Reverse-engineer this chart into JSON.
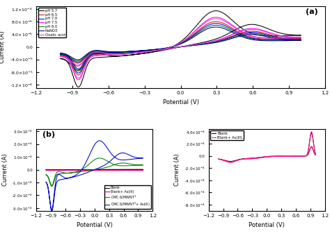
{
  "panel_a": {
    "label": "(a)",
    "xlabel": "Potential (V)",
    "ylabel": "Current (A)",
    "xlim": [
      -1.2,
      1.2
    ],
    "ylim": [
      -0.00013,
      0.00013
    ],
    "yticks": [
      -0.00012,
      -8e-05,
      -4e-05,
      0.0,
      4e-05,
      8e-05,
      0.00012
    ],
    "xticks": [
      -1.2,
      -0.9,
      -0.6,
      -0.3,
      0.0,
      0.3,
      0.6,
      0.9,
      1.2
    ],
    "curves": [
      {
        "label": "pH 5.7",
        "color": "#000000",
        "amp": 1.0
      },
      {
        "label": "pH 6.5",
        "color": "#ff0000",
        "amp": 0.7
      },
      {
        "label": "pH 7.0",
        "color": "#0000ff",
        "amp": 0.65
      },
      {
        "label": "pH 7.5",
        "color": "#ff00ff",
        "amp": 0.82
      },
      {
        "label": "pH 8.0",
        "color": "#008000",
        "amp": 0.6
      },
      {
        "label": "NaNO3",
        "color": "#000080",
        "amp": 0.55
      },
      {
        "label": "Oxalic acid",
        "color": "#cc44cc",
        "amp": 0.78
      }
    ]
  },
  "panel_b": {
    "label": "(b)",
    "xlabel": "Potential (V)",
    "ylabel": "Current (A)",
    "xlim": [
      -1.2,
      1.2
    ],
    "ylim": [
      -0.00032,
      0.00032
    ],
    "yticks": [
      -0.0003,
      -0.0002,
      -0.0001,
      0.0,
      0.0001,
      0.0002,
      0.0003
    ],
    "xticks": [
      -1.2,
      -0.9,
      -0.6,
      -0.3,
      0.0,
      0.3,
      0.6,
      0.9,
      1.2
    ],
    "curves": [
      {
        "label": "Blank",
        "color": "#000000"
      },
      {
        "label": "Blank+ As(III)",
        "color": "#ff1493"
      },
      {
        "label": "CMC-S/MWNT$^1$",
        "color": "#008000"
      },
      {
        "label": "CMC-S/MWNT$^1$+ As(III)",
        "color": "#0000cd"
      }
    ]
  },
  "panel_c": {
    "xlabel": "Potential (V)",
    "ylabel": "Current (A)",
    "xlim": [
      -1.2,
      1.2
    ],
    "ylim": [
      -0.0009,
      0.00045
    ],
    "yticks": [
      -0.0008,
      -0.0006,
      -0.0004,
      -0.0002,
      0.0,
      0.0002,
      0.0004
    ],
    "xticks": [
      -1.2,
      -0.9,
      -0.6,
      -0.3,
      0.0,
      0.3,
      0.6,
      0.9,
      1.2
    ],
    "curves": [
      {
        "label": "Blank",
        "color": "#000000"
      },
      {
        "label": "Blank+ As(III)",
        "color": "#ff1493"
      }
    ]
  }
}
